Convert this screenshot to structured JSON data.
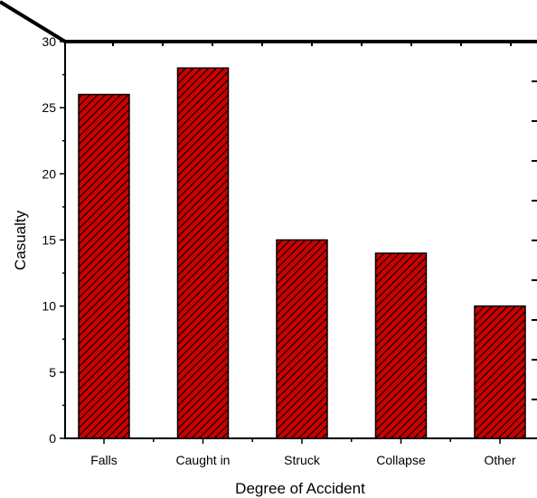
{
  "chart_data": {
    "type": "bar",
    "title": "",
    "xlabel": "Degree of Accident",
    "ylabel": "Casualty",
    "categories": [
      "Falls",
      "Caught in",
      "Struck",
      "Collapse",
      "Other"
    ],
    "values": [
      26,
      28,
      15,
      14,
      10
    ],
    "ylim": [
      0,
      30
    ],
    "yticks": [
      0,
      5,
      10,
      15,
      20,
      25,
      30
    ],
    "grid": false,
    "legend": "none",
    "bar_fill": "#cc0000",
    "bar_pattern": "diagonal-hatch",
    "hatch_color": "#000000"
  }
}
